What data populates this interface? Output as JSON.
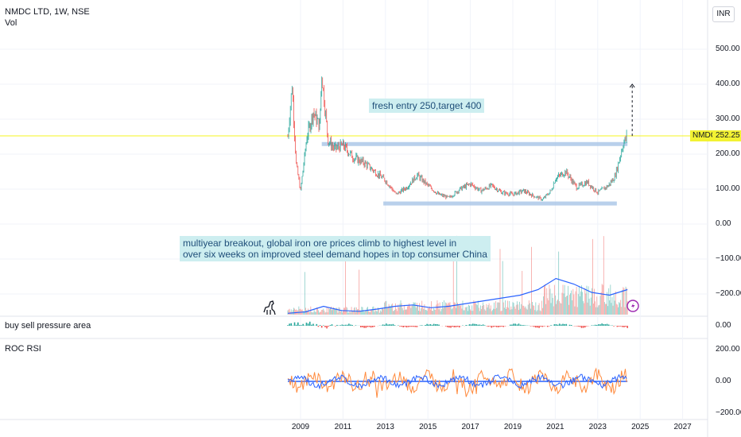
{
  "header": {
    "title": "NMDC LTD, 1W, NSE",
    "vol_label": "Vol",
    "currency": "INR"
  },
  "panes": {
    "pressure_label": "buy sell pressure area",
    "roc_label": "ROC RSI"
  },
  "price_tag": {
    "symbol": "NMDC",
    "value": "252.25"
  },
  "annotations": {
    "target_note": "fresh entry 250,target 400",
    "breakout_note_line1": "multiyear breakout,  global iron ore prices climb to highest level in",
    "breakout_note_line2": "over six weeks on improved steel demand hopes in top consumer China"
  },
  "axis": {
    "price_ticks": [
      "500.00",
      "400.00",
      "300.00",
      "200.00",
      "100.00",
      "0.00",
      "−100.00",
      "−200.00"
    ],
    "pressure_ticks": [
      "0.00"
    ],
    "roc_ticks": [
      "200.00",
      "0.00",
      "−200.00"
    ],
    "x_ticks": [
      "2009",
      "2011",
      "2013",
      "2015",
      "2017",
      "2019",
      "2021",
      "2023",
      "2025",
      "2027"
    ]
  },
  "colors": {
    "up": "#26a69a",
    "down": "#ef5350",
    "volume_ma": "#2962ff",
    "level_band": "#a8c4e6",
    "price_line": "#f5f51f",
    "roc": "#ff8a3d",
    "rsi": "#2962ff"
  },
  "chart_data": {
    "type": "line",
    "symbol": "NMDC",
    "timeframe": "1W",
    "x": [
      2008.4,
      2008.6,
      2008.8,
      2009.0,
      2009.3,
      2009.6,
      2009.9,
      2010.0,
      2010.3,
      2010.6,
      2011.0,
      2011.5,
      2012.0,
      2012.5,
      2013.0,
      2013.5,
      2014.0,
      2014.5,
      2015.0,
      2015.5,
      2016.0,
      2016.5,
      2017.0,
      2017.5,
      2018.0,
      2018.5,
      2019.0,
      2019.5,
      2020.0,
      2020.4,
      2020.8,
      2021.0,
      2021.5,
      2022.0,
      2022.5,
      2023.0,
      2023.5,
      2023.8,
      2024.0,
      2024.2,
      2024.4
    ],
    "close": [
      250,
      395,
      170,
      95,
      250,
      320,
      280,
      430,
      240,
      215,
      225,
      190,
      175,
      150,
      125,
      85,
      105,
      140,
      110,
      85,
      75,
      100,
      115,
      95,
      110,
      90,
      85,
      95,
      80,
      70,
      95,
      130,
      150,
      105,
      120,
      90,
      110,
      135,
      180,
      230,
      252
    ],
    "levels": [
      {
        "name": "resistance",
        "value": 230,
        "x_start": 2010.0,
        "x_end": 2024.4
      },
      {
        "name": "support",
        "value": 60,
        "x_start": 2012.9,
        "x_end": 2023.9
      }
    ],
    "target_projection": {
      "from": 252,
      "to": 400,
      "x": 2024.4
    },
    "current_price": 252.25,
    "volume_ma": [
      5,
      10,
      30,
      15,
      12,
      20,
      30,
      35,
      25,
      30,
      40,
      50,
      60,
      70,
      90,
      130,
      110,
      80,
      70,
      90
    ],
    "ylim": [
      -230,
      540
    ],
    "xlim": [
      2007.0,
      2027.8
    ],
    "grid": true
  }
}
